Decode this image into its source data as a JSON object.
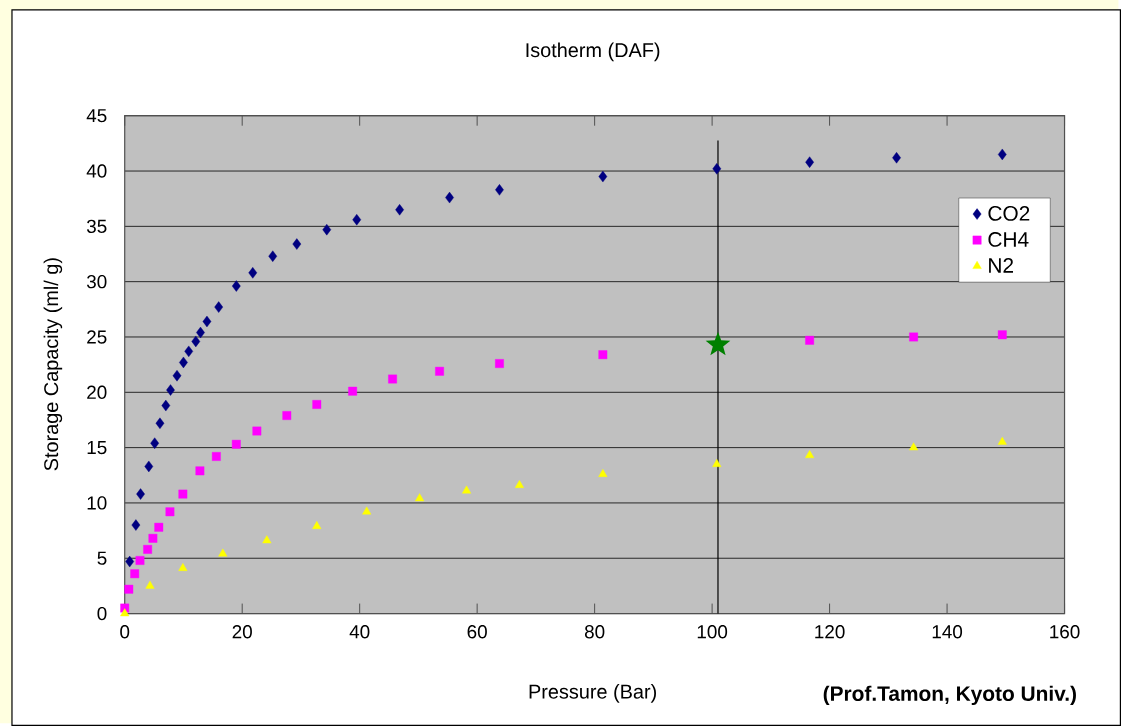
{
  "chart_data": {
    "type": "scatter",
    "title": "Isotherm (DAF)",
    "xlabel": "Pressure (Bar)",
    "ylabel": "Storage Capacity (ml/ g)",
    "annotations": [
      "(Prof.Tamon, Kyoto Univ.)"
    ],
    "xlim": [
      0,
      160
    ],
    "ylim": [
      0,
      45
    ],
    "xticks": [
      0,
      20,
      40,
      60,
      80,
      100,
      120,
      140,
      160
    ],
    "yticks": [
      0,
      5,
      10,
      15,
      20,
      25,
      30,
      35,
      40,
      45
    ],
    "grid": "y",
    "legend": "top right",
    "series": [
      {
        "name": "CO2",
        "color": "#000080",
        "marker": "diamond",
        "x": [
          0.85,
          1.9,
          2.7,
          4.1,
          5.1,
          6.0,
          7.0,
          7.8,
          8.9,
          10.0,
          10.9,
          12.1,
          12.9,
          14.0,
          16.0,
          19.0,
          21.8,
          25.2,
          29.3,
          34.4,
          39.5,
          46.8,
          55.3,
          63.8,
          81.4,
          100.8,
          116.6,
          131.4,
          149.4
        ],
        "values": [
          4.7,
          8.0,
          10.8,
          13.3,
          15.4,
          17.2,
          18.8,
          20.2,
          21.5,
          22.7,
          23.7,
          24.6,
          25.4,
          26.4,
          27.7,
          29.6,
          30.8,
          32.3,
          33.4,
          34.7,
          35.6,
          36.5,
          37.6,
          38.3,
          39.5,
          40.2,
          40.8,
          41.2,
          41.5
        ]
      },
      {
        "name": "CH4",
        "color": "#ff00ff",
        "marker": "square",
        "x": [
          0,
          0.7,
          1.7,
          2.6,
          3.9,
          4.8,
          5.8,
          7.7,
          9.9,
          12.8,
          15.6,
          19.0,
          22.5,
          27.6,
          32.7,
          38.8,
          45.6,
          53.6,
          63.8,
          81.4,
          100.8,
          116.6,
          134.3,
          149.4
        ],
        "values": [
          0.5,
          2.2,
          3.6,
          4.8,
          5.8,
          6.8,
          7.8,
          9.2,
          10.8,
          12.9,
          14.2,
          15.3,
          16.5,
          17.9,
          18.9,
          20.1,
          21.2,
          21.9,
          22.6,
          23.4,
          null,
          24.7,
          25.0,
          25.2
        ]
      },
      {
        "name": "N2",
        "color": "#ffff00",
        "marker": "triangle",
        "x": [
          0,
          4.3,
          9.9,
          16.7,
          24.2,
          32.7,
          41.2,
          50.2,
          58.2,
          67.2,
          81.4,
          100.8,
          116.6,
          134.3,
          149.4
        ],
        "values": [
          0,
          2.5,
          4.1,
          5.4,
          6.6,
          7.9,
          9.2,
          10.4,
          11.1,
          11.6,
          12.6,
          13.5,
          14.3,
          15.0,
          15.5
        ]
      },
      {
        "color": "#008000",
        "marker": "star",
        "x": [
          101
        ],
        "values": [
          24.3
        ]
      }
    ],
    "ref_lines": [
      {
        "axis": "x",
        "value": 101,
        "color": "#000000"
      }
    ]
  }
}
